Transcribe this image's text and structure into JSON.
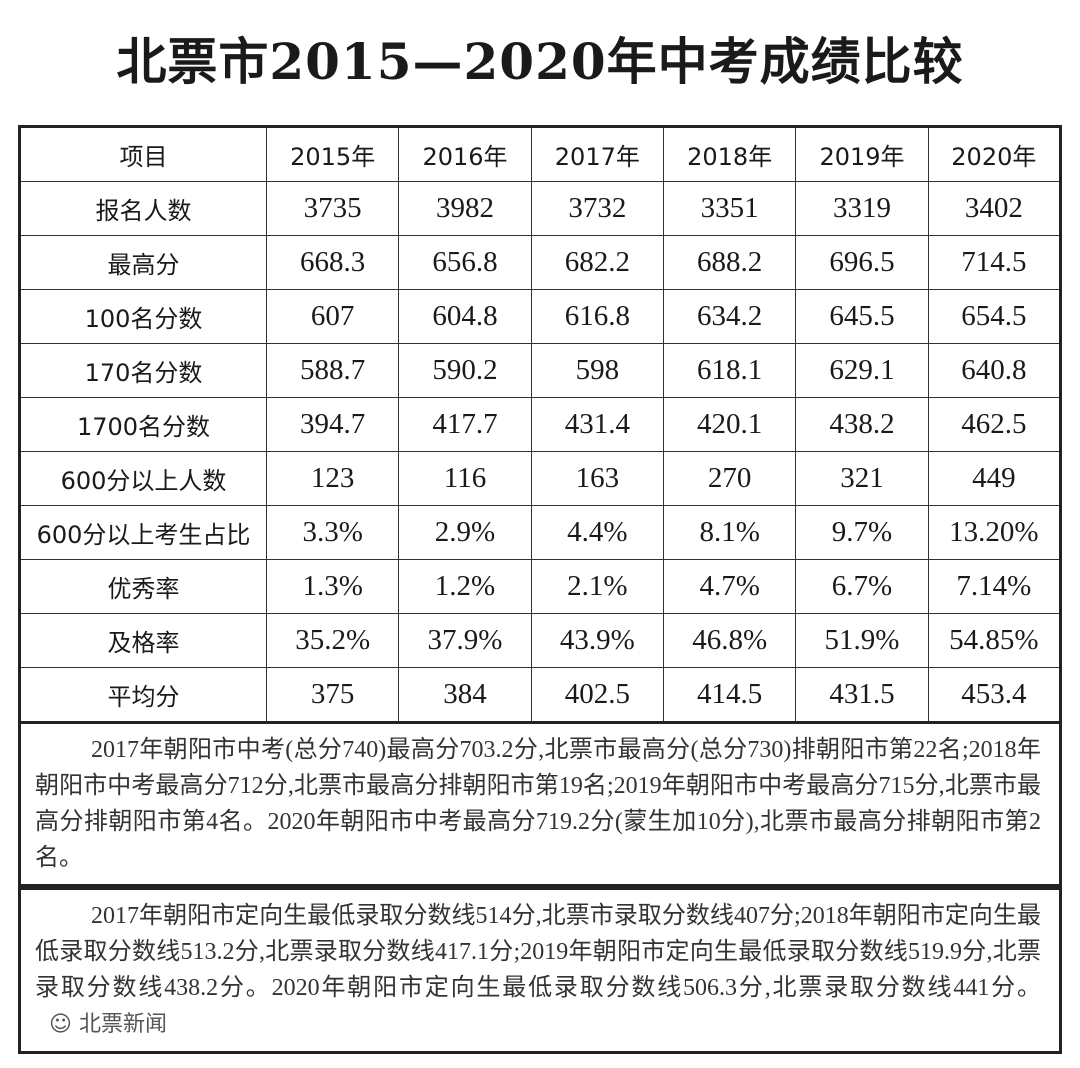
{
  "title": "北票市2015—2020年中考成绩比较",
  "table": {
    "headers": [
      "项目",
      "2015年",
      "2016年",
      "2017年",
      "2018年",
      "2019年",
      "2020年"
    ],
    "rows": [
      {
        "label": "报名人数",
        "values": [
          "3735",
          "3982",
          "3732",
          "3351",
          "3319",
          "3402"
        ]
      },
      {
        "label": "最高分",
        "values": [
          "668.3",
          "656.8",
          "682.2",
          "688.2",
          "696.5",
          "714.5"
        ]
      },
      {
        "label": "100名分数",
        "values": [
          "607",
          "604.8",
          "616.8",
          "634.2",
          "645.5",
          "654.5"
        ]
      },
      {
        "label": "170名分数",
        "values": [
          "588.7",
          "590.2",
          "598",
          "618.1",
          "629.1",
          "640.8"
        ]
      },
      {
        "label": "1700名分数",
        "values": [
          "394.7",
          "417.7",
          "431.4",
          "420.1",
          "438.2",
          "462.5"
        ]
      },
      {
        "label": "600分以上人数",
        "values": [
          "123",
          "116",
          "163",
          "270",
          "321",
          "449"
        ]
      },
      {
        "label": "600分以上考生占比",
        "values": [
          "3.3%",
          "2.9%",
          "4.4%",
          "8.1%",
          "9.7%",
          "13.20%"
        ]
      },
      {
        "label": "优秀率",
        "values": [
          "1.3%",
          "1.2%",
          "2.1%",
          "4.7%",
          "6.7%",
          "7.14%"
        ]
      },
      {
        "label": "及格率",
        "values": [
          "35.2%",
          "37.9%",
          "43.9%",
          "46.8%",
          "51.9%",
          "54.85%"
        ]
      },
      {
        "label": "平均分",
        "values": [
          "375",
          "384",
          "402.5",
          "414.5",
          "431.5",
          "453.4"
        ]
      }
    ]
  },
  "notes": [
    "2017年朝阳市中考(总分740)最高分703.2分,北票市最高分(总分730)排朝阳市第22名;2018年朝阳市中考最高分712分,北票市最高分排朝阳市第19名;2019年朝阳市中考最高分715分,北票市最高分排朝阳市第4名。2020年朝阳市中考最高分719.2分(蒙生加10分),北票市最高分排朝阳市第2名。",
    "2017年朝阳市定向生最低录取分数线514分,北票市录取分数线407分;2018年朝阳市定向生最低录取分数线513.2分,北票录取分数线417.1分;2019年朝阳市定向生最低录取分数线519.9分,北票录取分数线438.2分。2020年朝阳市定向生最低录取分数线506.3分,北票录取分数线441分。"
  ],
  "watermark": "北票新闻"
}
